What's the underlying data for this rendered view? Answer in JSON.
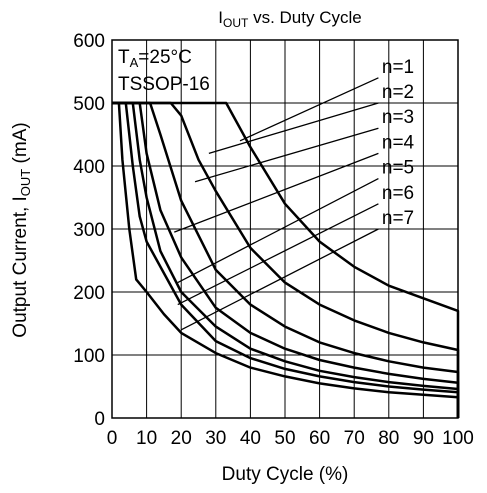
{
  "chart_data": {
    "type": "line",
    "title": {
      "main": "I",
      "sub": "OUT",
      "rest": " vs. Duty  Cycle"
    },
    "xlabel": "Duty Cycle  (%)",
    "ylabel": {
      "main": "Output Current, I",
      "sub": "OUT",
      "rest": " (mA)"
    },
    "xlim": [
      0,
      100
    ],
    "ylim": [
      0,
      600
    ],
    "x_ticks": [
      0,
      10,
      20,
      30,
      40,
      50,
      60,
      70,
      80,
      90,
      100
    ],
    "x_tick_labels": [
      "0",
      "10",
      "20",
      "30",
      "40",
      "50",
      "60",
      "70",
      "80",
      "90",
      "100"
    ],
    "y_ticks": [
      0,
      100,
      200,
      300,
      400,
      500,
      600
    ],
    "y_tick_labels": [
      "0",
      "100",
      "200",
      "300",
      "400",
      "500",
      "600"
    ],
    "grid": true,
    "conditions": [
      {
        "main": "T",
        "sub": "A",
        "rest": "=25°C"
      },
      {
        "main": "TSSOP-16",
        "sub": "",
        "rest": ""
      }
    ],
    "series": [
      {
        "name": "n=1",
        "points": [
          [
            33,
            500
          ],
          [
            35,
            480
          ],
          [
            40,
            430
          ],
          [
            50,
            340
          ],
          [
            60,
            280
          ],
          [
            70,
            240
          ],
          [
            80,
            210
          ],
          [
            90,
            190
          ],
          [
            100,
            170
          ],
          [
            100,
            0
          ]
        ]
      },
      {
        "name": "n=2",
        "points": [
          [
            17,
            500
          ],
          [
            20,
            480
          ],
          [
            25,
            410
          ],
          [
            30,
            360
          ],
          [
            40,
            270
          ],
          [
            50,
            215
          ],
          [
            60,
            180
          ],
          [
            70,
            155
          ],
          [
            80,
            135
          ],
          [
            90,
            120
          ],
          [
            100,
            108
          ],
          [
            100,
            0
          ]
        ]
      },
      {
        "name": "n=3",
        "points": [
          [
            11,
            500
          ],
          [
            14,
            450
          ],
          [
            20,
            345
          ],
          [
            30,
            235
          ],
          [
            40,
            180
          ],
          [
            50,
            145
          ],
          [
            60,
            120
          ],
          [
            70,
            103
          ],
          [
            80,
            90
          ],
          [
            90,
            80
          ],
          [
            100,
            73
          ],
          [
            100,
            0
          ]
        ]
      },
      {
        "name": "n=4",
        "points": [
          [
            8,
            500
          ],
          [
            10,
            420
          ],
          [
            14,
            330
          ],
          [
            20,
            255
          ],
          [
            30,
            175
          ],
          [
            40,
            135
          ],
          [
            50,
            110
          ],
          [
            60,
            92
          ],
          [
            70,
            80
          ],
          [
            80,
            70
          ],
          [
            90,
            62
          ],
          [
            100,
            56
          ],
          [
            100,
            0
          ]
        ]
      },
      {
        "name": "n=5",
        "points": [
          [
            6,
            500
          ],
          [
            8,
            410
          ],
          [
            10,
            350
          ],
          [
            14,
            265
          ],
          [
            20,
            200
          ],
          [
            30,
            145
          ],
          [
            40,
            110
          ],
          [
            50,
            90
          ],
          [
            60,
            75
          ],
          [
            70,
            65
          ],
          [
            80,
            57
          ],
          [
            90,
            51
          ],
          [
            100,
            46
          ],
          [
            100,
            0
          ]
        ]
      },
      {
        "name": "n=6",
        "points": [
          [
            4,
            500
          ],
          [
            6,
            400
          ],
          [
            8,
            320
          ],
          [
            10,
            280
          ],
          [
            15,
            230
          ],
          [
            20,
            180
          ],
          [
            30,
            122
          ],
          [
            40,
            95
          ],
          [
            50,
            78
          ],
          [
            60,
            66
          ],
          [
            70,
            57
          ],
          [
            80,
            50
          ],
          [
            90,
            45
          ],
          [
            100,
            41
          ],
          [
            100,
            0
          ]
        ]
      },
      {
        "name": "n=7",
        "points": [
          [
            2,
            500
          ],
          [
            3,
            410
          ],
          [
            5,
            300
          ],
          [
            7,
            220
          ],
          [
            10,
            200
          ],
          [
            15,
            165
          ],
          [
            20,
            135
          ],
          [
            30,
            103
          ],
          [
            40,
            80
          ],
          [
            50,
            66
          ],
          [
            60,
            55
          ],
          [
            70,
            47
          ],
          [
            80,
            41
          ],
          [
            90,
            37
          ],
          [
            100,
            33
          ],
          [
            100,
            0
          ]
        ]
      }
    ],
    "legend_labels": [
      {
        "name": "n=1",
        "text_at": [
          78,
          548
        ],
        "leader_from": [
          77,
          540
        ],
        "leader_to": [
          37,
          440
        ]
      },
      {
        "name": "n=2",
        "text_at": [
          78,
          508
        ],
        "leader_from": [
          77,
          500
        ],
        "leader_to": [
          28,
          420
        ]
      },
      {
        "name": "n=3",
        "text_at": [
          78,
          468
        ],
        "leader_from": [
          77,
          460
        ],
        "leader_to": [
          24,
          375
        ]
      },
      {
        "name": "n=4",
        "text_at": [
          78,
          428
        ],
        "leader_from": [
          77,
          420
        ],
        "leader_to": [
          18,
          295
        ]
      },
      {
        "name": "n=5",
        "text_at": [
          78,
          388
        ],
        "leader_from": [
          77,
          380
        ],
        "leader_to": [
          19,
          215
        ]
      },
      {
        "name": "n=6",
        "text_at": [
          78,
          348
        ],
        "leader_from": [
          77,
          340
        ],
        "leader_to": [
          19,
          180
        ]
      },
      {
        "name": "n=7",
        "text_at": [
          78,
          308
        ],
        "leader_from": [
          77,
          300
        ],
        "leader_to": [
          20,
          140
        ]
      }
    ]
  }
}
